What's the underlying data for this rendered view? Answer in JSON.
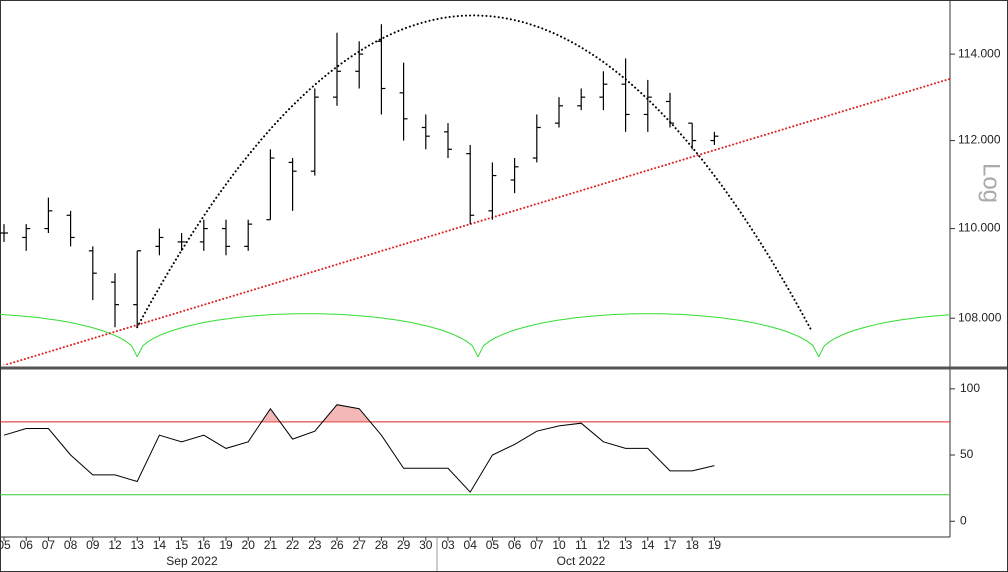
{
  "chart_data": [
    {
      "type": "ohlc",
      "log_scale": true,
      "y_label": "Log",
      "color": "#000000",
      "categories": [
        "05",
        "06",
        "07",
        "08",
        "09",
        "12",
        "13",
        "14",
        "15",
        "16",
        "19",
        "20",
        "21",
        "22",
        "23",
        "26",
        "27",
        "28",
        "29",
        "30",
        "03",
        "04",
        "05",
        "06",
        "07",
        "10",
        "11",
        "12",
        "13",
        "14",
        "17",
        "18",
        "19"
      ],
      "months": [
        "Sep 2022",
        "Oct 2022"
      ],
      "open": [
        109.9,
        109.8,
        110.0,
        110.3,
        109.5,
        108.8,
        108.3,
        109.6,
        109.7,
        109.7,
        110.0,
        109.6,
        110.2,
        111.5,
        111.3,
        113.0,
        113.6,
        114.3,
        113.1,
        112.3,
        112.2,
        111.7,
        110.4,
        111.1,
        111.6,
        112.4,
        112.8,
        113.0,
        113.3,
        112.6,
        112.9,
        112.4,
        112.0
      ],
      "high": [
        110.1,
        110.1,
        110.7,
        110.4,
        109.6,
        109.0,
        109.5,
        110.0,
        109.9,
        110.2,
        110.2,
        110.2,
        111.8,
        111.6,
        113.2,
        114.5,
        114.3,
        114.7,
        113.8,
        112.6,
        112.4,
        111.9,
        111.5,
        111.6,
        112.6,
        113.0,
        113.2,
        113.6,
        113.9,
        113.4,
        113.1,
        112.4,
        112.2
      ],
      "low": [
        109.7,
        109.5,
        109.9,
        109.6,
        108.4,
        107.8,
        107.8,
        109.4,
        109.5,
        109.5,
        109.4,
        109.5,
        110.2,
        110.4,
        111.2,
        112.8,
        113.2,
        112.6,
        112.0,
        111.8,
        111.6,
        110.1,
        110.2,
        110.8,
        111.5,
        112.3,
        112.7,
        112.7,
        112.2,
        112.2,
        112.3,
        111.8,
        111.9
      ],
      "close": [
        109.9,
        110.0,
        110.4,
        109.8,
        109.0,
        108.3,
        109.5,
        109.8,
        109.7,
        110.0,
        109.6,
        110.1,
        111.6,
        111.3,
        113.0,
        113.6,
        114.0,
        113.2,
        112.5,
        112.1,
        111.8,
        110.3,
        111.2,
        111.4,
        112.3,
        112.8,
        113.0,
        113.3,
        112.6,
        113.0,
        112.4,
        112.0,
        112.1
      ],
      "ylim": [
        106.97,
        115.27
      ],
      "yticks": [
        {
          "value": 108,
          "label": "108.000"
        },
        {
          "value": 110,
          "label": "110.000"
        },
        {
          "value": 112,
          "label": "112.000"
        },
        {
          "value": 114,
          "label": "114.000"
        }
      ],
      "arc": {
        "x": [
          6,
          21.6,
          36.4
        ],
        "y": [
          107.8,
          114.9,
          107.7
        ],
        "color": "#000000"
      },
      "trend": {
        "x": [
          6,
          21
        ],
        "y": [
          107.85,
          110.1
        ],
        "color": "#e02020"
      },
      "cycle": {
        "troughs": [
          6,
          21.35,
          36.7
        ],
        "low": 107.15,
        "high": 108.1,
        "color": "#33dd33"
      }
    },
    {
      "type": "oscillator",
      "color": "#000000",
      "values": [
        65,
        70,
        70,
        50,
        35,
        35,
        30,
        65,
        60,
        65,
        55,
        60,
        85,
        62,
        68,
        88,
        85,
        65,
        40,
        40,
        40,
        22,
        50,
        58,
        68,
        72,
        74,
        60,
        55,
        55,
        38,
        38,
        42
      ],
      "ylim": [
        -10.4,
        112.7
      ],
      "yticks": [
        0,
        50,
        100
      ],
      "upper": 75,
      "lower": 20,
      "upper_color": "#e02020",
      "lower_color": "#33cc33",
      "fill_color": "#f4b8b8"
    }
  ]
}
